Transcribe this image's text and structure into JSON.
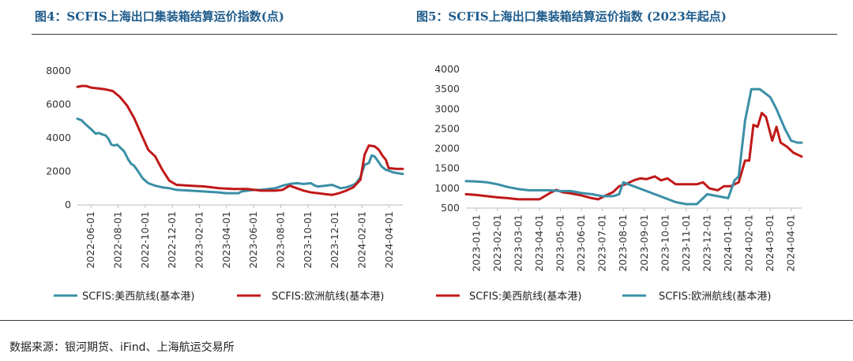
{
  "titles": {
    "left": "图4：SCFIS上海出口集装箱结算运价指数(点)",
    "right": "图5：SCFIS上海出口集装箱结算运价指数 (2023年起点)"
  },
  "source": "数据来源：银河期货、iFind、上海航运交易所",
  "colors": {
    "us_west": "#3a8fa6",
    "europe": "#c01818"
  },
  "chart_data": [
    {
      "type": "line",
      "ylim": [
        0,
        8000
      ],
      "yticks": [
        "0",
        "2000",
        "4000",
        "6000",
        "8000"
      ],
      "xlim": [
        0,
        23
      ],
      "xticks": [
        "2022-06-01",
        "2022-08-01",
        "2022-10-01",
        "2022-12-01",
        "2023-02-01",
        "2023-04-01",
        "2023-06-01",
        "2023-08-01",
        "2023-10-01",
        "2023-12-01",
        "2024-02-01",
        "2024-04-01"
      ],
      "series": [
        {
          "name": "SCFIS:美西航线(基本港)",
          "color": "#3a8fa6",
          "points": [
            [
              0,
              5150
            ],
            [
              0.3,
              5050
            ],
            [
              0.6,
              4800
            ],
            [
              1,
              4500
            ],
            [
              1.3,
              4250
            ],
            [
              1.5,
              4300
            ],
            [
              1.8,
              4200
            ],
            [
              2,
              4150
            ],
            [
              2.2,
              3950
            ],
            [
              2.4,
              3600
            ],
            [
              2.6,
              3550
            ],
            [
              2.8,
              3600
            ],
            [
              3,
              3450
            ],
            [
              3.3,
              3200
            ],
            [
              3.6,
              2700
            ],
            [
              3.8,
              2450
            ],
            [
              4,
              2350
            ],
            [
              4.3,
              2000
            ],
            [
              4.6,
              1600
            ],
            [
              5,
              1300
            ],
            [
              5.5,
              1150
            ],
            [
              6,
              1050
            ],
            [
              6.5,
              1000
            ],
            [
              7,
              900
            ],
            [
              8,
              850
            ],
            [
              9,
              800
            ],
            [
              10,
              750
            ],
            [
              10.5,
              700
            ],
            [
              11,
              700
            ],
            [
              11.4,
              700
            ],
            [
              11.6,
              800
            ],
            [
              12,
              850
            ],
            [
              12.5,
              900
            ],
            [
              13,
              900
            ],
            [
              13.5,
              950
            ],
            [
              14,
              1000
            ],
            [
              14.5,
              1150
            ],
            [
              15,
              1250
            ],
            [
              15.5,
              1300
            ],
            [
              16,
              1250
            ],
            [
              16.5,
              1300
            ],
            [
              16.8,
              1150
            ],
            [
              17,
              1100
            ],
            [
              17.5,
              1150
            ],
            [
              18,
              1200
            ],
            [
              18.3,
              1100
            ],
            [
              18.6,
              1000
            ],
            [
              19,
              1050
            ],
            [
              19.5,
              1200
            ],
            [
              19.7,
              1300
            ],
            [
              20,
              1650
            ],
            [
              20.3,
              2400
            ],
            [
              20.6,
              2500
            ],
            [
              20.8,
              2950
            ],
            [
              21,
              2900
            ],
            [
              21.3,
              2550
            ],
            [
              21.5,
              2300
            ],
            [
              21.8,
              2100
            ],
            [
              22,
              2050
            ],
            [
              22.3,
              1950
            ],
            [
              22.6,
              1900
            ],
            [
              23,
              1850
            ]
          ]
        },
        {
          "name": "SCFIS:欧洲航线(基本港)",
          "color": "#c01818",
          "points": [
            [
              0,
              7050
            ],
            [
              0.3,
              7100
            ],
            [
              0.6,
              7100
            ],
            [
              1,
              7000
            ],
            [
              1.5,
              6950
            ],
            [
              2,
              6900
            ],
            [
              2.5,
              6800
            ],
            [
              3,
              6450
            ],
            [
              3.5,
              5950
            ],
            [
              4,
              5200
            ],
            [
              4.5,
              4250
            ],
            [
              5,
              3300
            ],
            [
              5.5,
              2900
            ],
            [
              6,
              2100
            ],
            [
              6.5,
              1450
            ],
            [
              7,
              1200
            ],
            [
              8,
              1150
            ],
            [
              9,
              1100
            ],
            [
              10,
              1000
            ],
            [
              11,
              950
            ],
            [
              12,
              950
            ],
            [
              12.5,
              900
            ],
            [
              13,
              850
            ],
            [
              14,
              850
            ],
            [
              14.5,
              900
            ],
            [
              15,
              1150
            ],
            [
              15.5,
              1000
            ],
            [
              16,
              850
            ],
            [
              16.5,
              750
            ],
            [
              17,
              700
            ],
            [
              17.5,
              650
            ],
            [
              18,
              600
            ],
            [
              18.5,
              700
            ],
            [
              19,
              850
            ],
            [
              19.5,
              1050
            ],
            [
              20,
              1500
            ],
            [
              20.3,
              3000
            ],
            [
              20.6,
              3550
            ],
            [
              21,
              3500
            ],
            [
              21.3,
              3300
            ],
            [
              21.6,
              2900
            ],
            [
              21.8,
              2700
            ],
            [
              22,
              2200
            ],
            [
              22.5,
              2150
            ],
            [
              23,
              2150
            ]
          ]
        }
      ]
    },
    {
      "type": "line",
      "ylim": [
        500,
        4000
      ],
      "yticks": [
        "500",
        "1000",
        "1500",
        "2000",
        "2500",
        "3000",
        "3500",
        "4000"
      ],
      "xlim": [
        0,
        16
      ],
      "xticks": [
        "2023-01-01",
        "2023-02-01",
        "2023-03-01",
        "2023-04-01",
        "2023-05-01",
        "2023-06-01",
        "2023-07-01",
        "2023-08-01",
        "2023-09-01",
        "2023-10-01",
        "2023-11-01",
        "2023-12-01",
        "2024-01-01",
        "2024-02-01",
        "2024-03-01",
        "2024-04-01"
      ],
      "series": [
        {
          "name": "SCFIS:美西航线(基本港)",
          "color": "#c01818",
          "points": [
            [
              0,
              850
            ],
            [
              0.5,
              830
            ],
            [
              1,
              800
            ],
            [
              1.5,
              770
            ],
            [
              2,
              750
            ],
            [
              2.5,
              720
            ],
            [
              3,
              720
            ],
            [
              3.5,
              720
            ],
            [
              4,
              880
            ],
            [
              4.3,
              960
            ],
            [
              4.6,
              900
            ],
            [
              5,
              870
            ],
            [
              5.5,
              820
            ],
            [
              6,
              750
            ],
            [
              6.3,
              720
            ],
            [
              6.6,
              800
            ],
            [
              7,
              900
            ],
            [
              7.3,
              1050
            ],
            [
              7.6,
              1100
            ],
            [
              8,
              1200
            ],
            [
              8.3,
              1250
            ],
            [
              8.6,
              1230
            ],
            [
              9,
              1300
            ],
            [
              9.3,
              1200
            ],
            [
              9.6,
              1250
            ],
            [
              10,
              1100
            ],
            [
              10.5,
              1100
            ],
            [
              11,
              1100
            ],
            [
              11.3,
              1150
            ],
            [
              11.6,
              1000
            ],
            [
              12,
              950
            ],
            [
              12.3,
              1050
            ],
            [
              12.6,
              1050
            ],
            [
              13,
              1150
            ],
            [
              13.3,
              1700
            ],
            [
              13.5,
              1700
            ],
            [
              13.7,
              2600
            ],
            [
              13.9,
              2550
            ],
            [
              14.1,
              2900
            ],
            [
              14.3,
              2800
            ],
            [
              14.6,
              2200
            ],
            [
              14.8,
              2550
            ],
            [
              15,
              2150
            ],
            [
              15.3,
              2050
            ],
            [
              15.6,
              1900
            ],
            [
              15.8,
              1850
            ],
            [
              16,
              1800
            ]
          ]
        },
        {
          "name": "SCFIS:欧洲航线(基本港)",
          "color": "#3a8fa6",
          "points": [
            [
              0,
              1180
            ],
            [
              0.5,
              1170
            ],
            [
              1,
              1150
            ],
            [
              1.5,
              1100
            ],
            [
              2,
              1030
            ],
            [
              2.5,
              980
            ],
            [
              3,
              950
            ],
            [
              3.5,
              950
            ],
            [
              4,
              950
            ],
            [
              4.5,
              930
            ],
            [
              5,
              930
            ],
            [
              5.5,
              880
            ],
            [
              6,
              850
            ],
            [
              6.5,
              800
            ],
            [
              7,
              800
            ],
            [
              7.3,
              850
            ],
            [
              7.5,
              1150
            ],
            [
              8,
              1050
            ],
            [
              8.5,
              950
            ],
            [
              9,
              850
            ],
            [
              9.5,
              750
            ],
            [
              10,
              650
            ],
            [
              10.5,
              600
            ],
            [
              11,
              600
            ],
            [
              11.5,
              850
            ],
            [
              12,
              800
            ],
            [
              12.5,
              750
            ],
            [
              12.8,
              1200
            ],
            [
              13,
              1300
            ],
            [
              13.3,
              2700
            ],
            [
              13.6,
              3500
            ],
            [
              14,
              3500
            ],
            [
              14.5,
              3300
            ],
            [
              14.8,
              3000
            ],
            [
              15,
              2750
            ],
            [
              15.2,
              2500
            ],
            [
              15.5,
              2200
            ],
            [
              15.8,
              2150
            ],
            [
              16,
              2150
            ]
          ]
        }
      ]
    }
  ]
}
